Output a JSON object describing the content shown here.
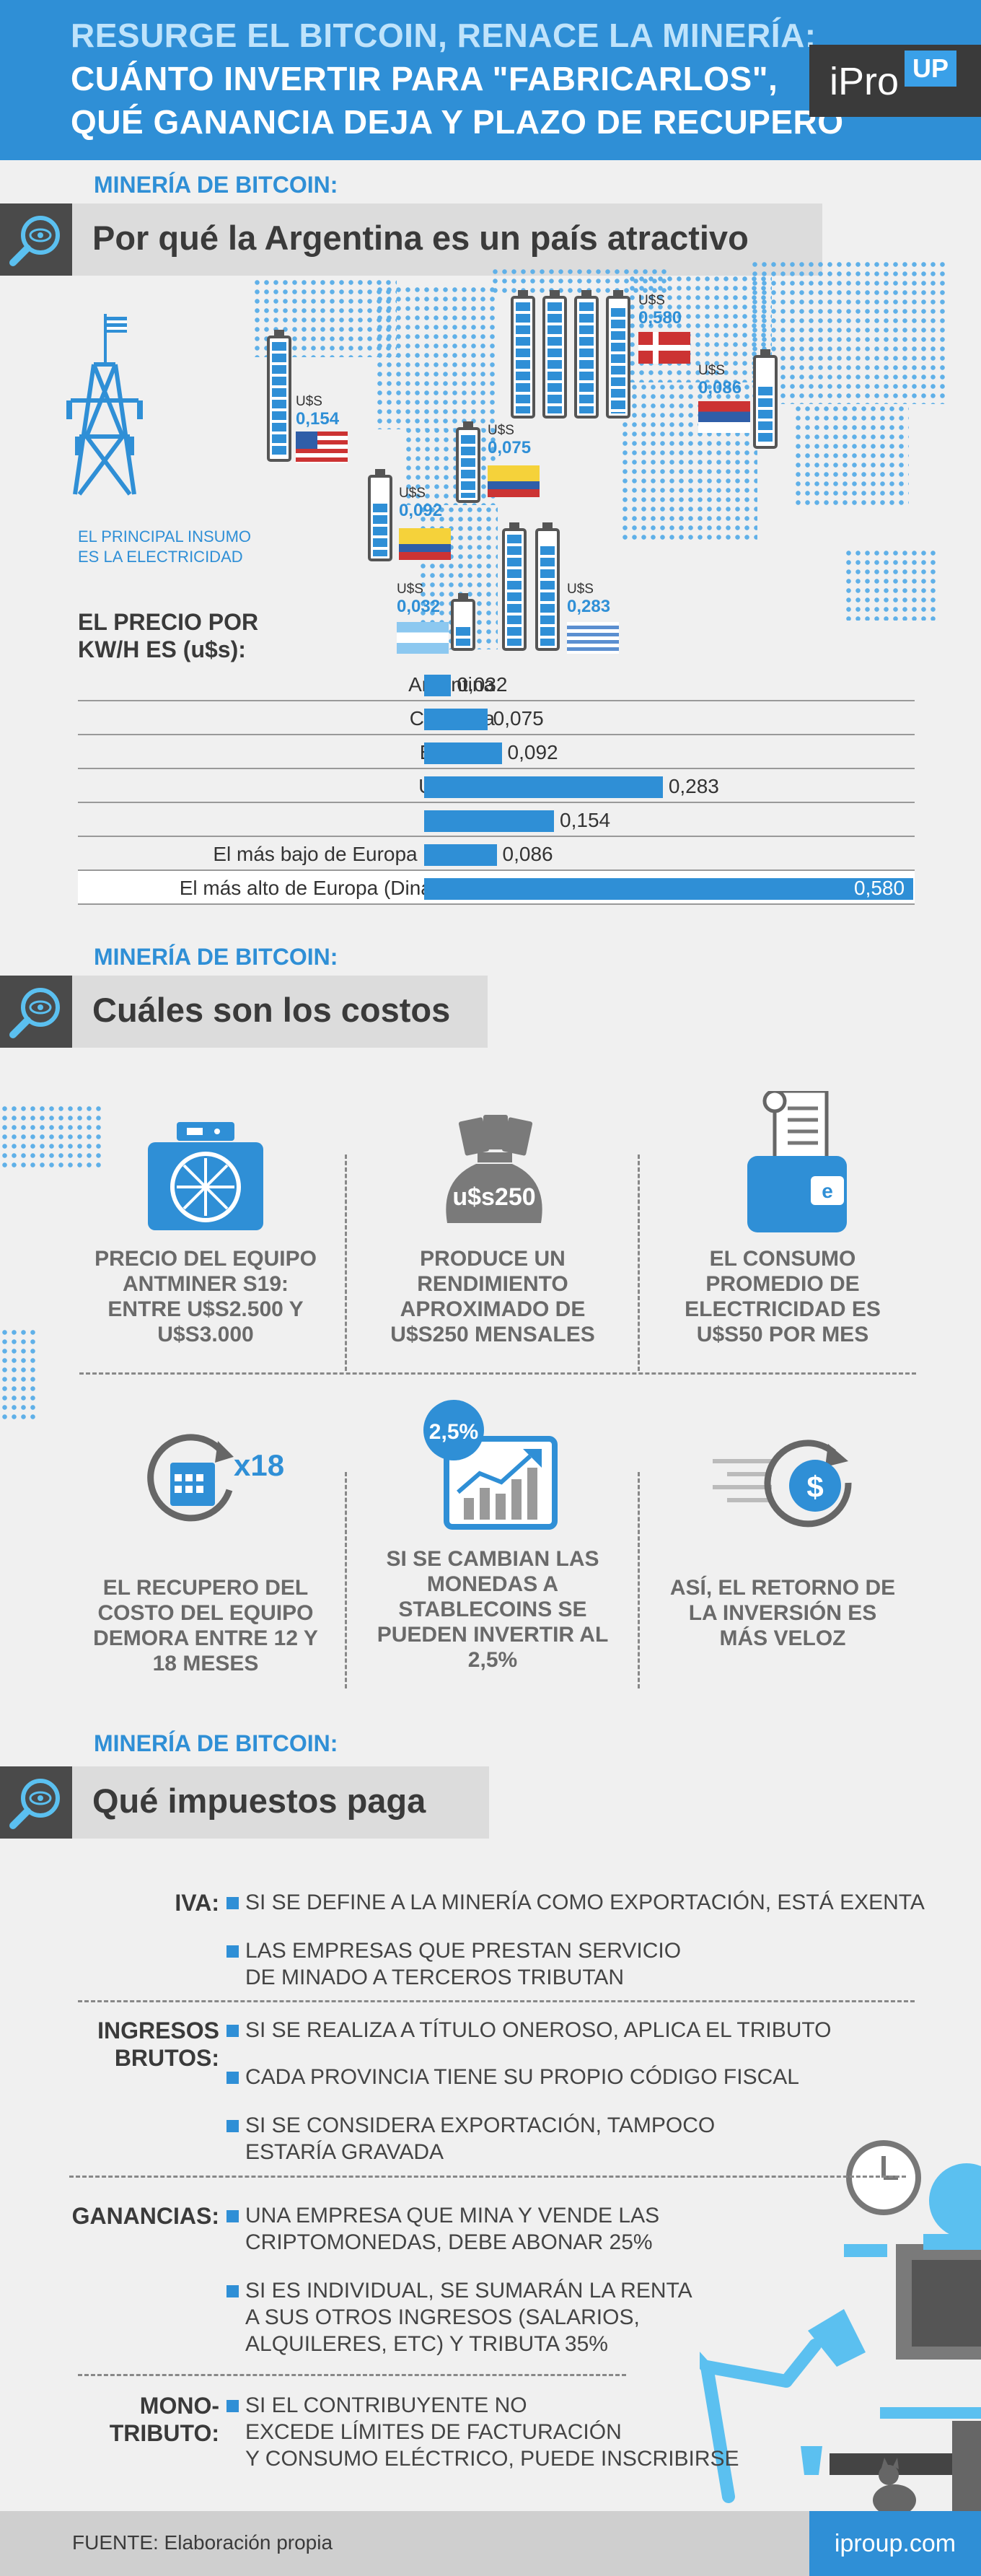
{
  "header": {
    "line1": "RESURGE EL BITCOIN, RENACE LA MINERÍA:",
    "line2": "CUÁNTO INVERTIR PARA \"FABRICARLOS\",",
    "line3": "QUÉ GANANCIA DEJA Y PLAZO DE RECUPERO",
    "logo_main": "iPro",
    "logo_badge": "UP"
  },
  "section1": {
    "kicker": "MINERÍA DE BITCOIN:",
    "title": "Por qué la Argentina es un país atractivo",
    "insumo": "EL PRINCIPAL INSUMO\nES LA ELECTRICIDAD",
    "price_label_1": "EL PRECIO POR",
    "price_label_2": "KW/H ES (u$s):",
    "map_prices": {
      "currency": "U$S",
      "usa": "0,154",
      "colombia": "0,075",
      "ecuador": "0,092",
      "argentina": "0,032",
      "uruguay": "0,283",
      "dinamarca": "0,580",
      "serbia": "0,086"
    }
  },
  "chart_data": {
    "type": "bar",
    "title": "EL PRECIO POR KW/H ES (u$s):",
    "categories": [
      "Argentina",
      "Colombia",
      "Ecuador",
      "Uruguay",
      "EE.UU.",
      "El más bajo de Europa (Serbia)",
      "El más alto de Europa (Dinamarca)"
    ],
    "values": [
      0.032,
      0.075,
      0.092,
      0.283,
      0.154,
      0.086,
      0.58
    ],
    "value_labels": [
      "0,032",
      "0,075",
      "0,092",
      "0,283",
      "0,154",
      "0,086",
      "0,580"
    ],
    "xlim": [
      0,
      0.58
    ],
    "colors": {
      "bar": "#2f8fd6"
    }
  },
  "section2": {
    "kicker": "MINERÍA DE BITCOIN:",
    "title": "Cuáles son los costos",
    "badge": "u$s250",
    "pct": "2,5%",
    "mult": "x18",
    "items": [
      "PRECIO DEL EQUIPO ANTMINER S19: ENTRE U$S2.500 Y U$S3.000",
      "PRODUCE UN RENDIMIENTO APROXIMADO DE U$S250 MENSALES",
      "EL CONSUMO PROMEDIO DE ELECTRICIDAD ES U$S50 POR MES",
      "EL RECUPERO DEL COSTO DEL EQUIPO DEMORA ENTRE 12 Y 18 MESES",
      "SI SE CAMBIAN LAS MONEDAS A STABLECOINS SE PUEDEN INVERTIR AL 2,5%",
      "ASÍ, EL RETORNO DE LA INVERSIÓN ES MÁS VELOZ"
    ]
  },
  "section3": {
    "kicker": "MINERÍA DE BITCOIN:",
    "title": "Qué impuestos paga",
    "iva_label": "IVA:",
    "iva_1": "SI SE DEFINE A LA MINERÍA COMO EXPORTACIÓN, ESTÁ EXENTA",
    "iva_2": "LAS EMPRESAS QUE PRESTAN SERVICIO\nDE MINADO A TERCEROS TRIBUTAN",
    "ib_label": "INGRESOS\nBRUTOS:",
    "ib_1": "SI SE REALIZA A TÍTULO ONEROSO, APLICA EL TRIBUTO",
    "ib_2": "CADA PROVINCIA TIENE SU PROPIO CÓDIGO FISCAL",
    "ib_3": "SI SE CONSIDERA EXPORTACIÓN, TAMPOCO\nESTARÍA GRAVADA",
    "gan_label": "GANANCIAS:",
    "gan_1": "UNA EMPRESA QUE MINA Y VENDE LAS\nCRIPTOMONEDAS, DEBE ABONAR 25%",
    "gan_2": "SI ES INDIVIDUAL, SE SUMARÁN LA RENTA\nA SUS OTROS INGRESOS (SALARIOS,\nALQUILERES, ETC) Y TRIBUTA 35%",
    "mono_label": "MONO-\nTRIBUTO:",
    "mono_1": "SI EL CONTRIBUYENTE NO\nEXCEDE LÍMITES DE FACTURACIÓN\nY CONSUMO ELÉCTRICO, PUEDE INSCRIBIRSE"
  },
  "footer": {
    "source": "FUENTE: Elaboración propia",
    "site": "iproup.com"
  }
}
